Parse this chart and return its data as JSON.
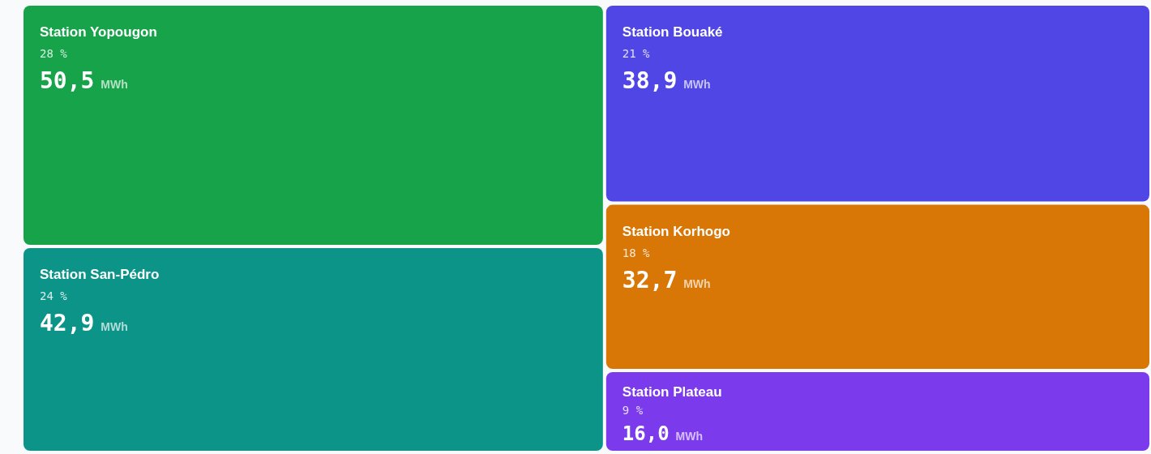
{
  "chart_data": {
    "type": "other",
    "categories": [
      "Station Yopougon",
      "Station San-Pédro",
      "Station Bouaké",
      "Station Korhogo",
      "Station Plateau"
    ],
    "values": [
      50.5,
      42.9,
      38.9,
      32.7,
      16.0
    ],
    "value_labels": [
      "50,5 MWh",
      "42,9 MWh",
      "38,9 MWh",
      "32,7 MWh",
      "16,0 MWh"
    ],
    "colors": [
      "#16a34a",
      "#0d9488",
      "#4f46e5",
      "#d97706",
      "#7c3aed"
    ],
    "annotations": [
      {
        "text": "28 %",
        "x": "Station Yopougon"
      },
      {
        "text": "24 %",
        "x": "Station San-Pédro"
      },
      {
        "text": "21 %",
        "x": "Station Bouaké"
      },
      {
        "text": "18 %",
        "x": "Station Korhogo"
      },
      {
        "text": "9 %",
        "x": "Station Plateau"
      }
    ]
  }
}
